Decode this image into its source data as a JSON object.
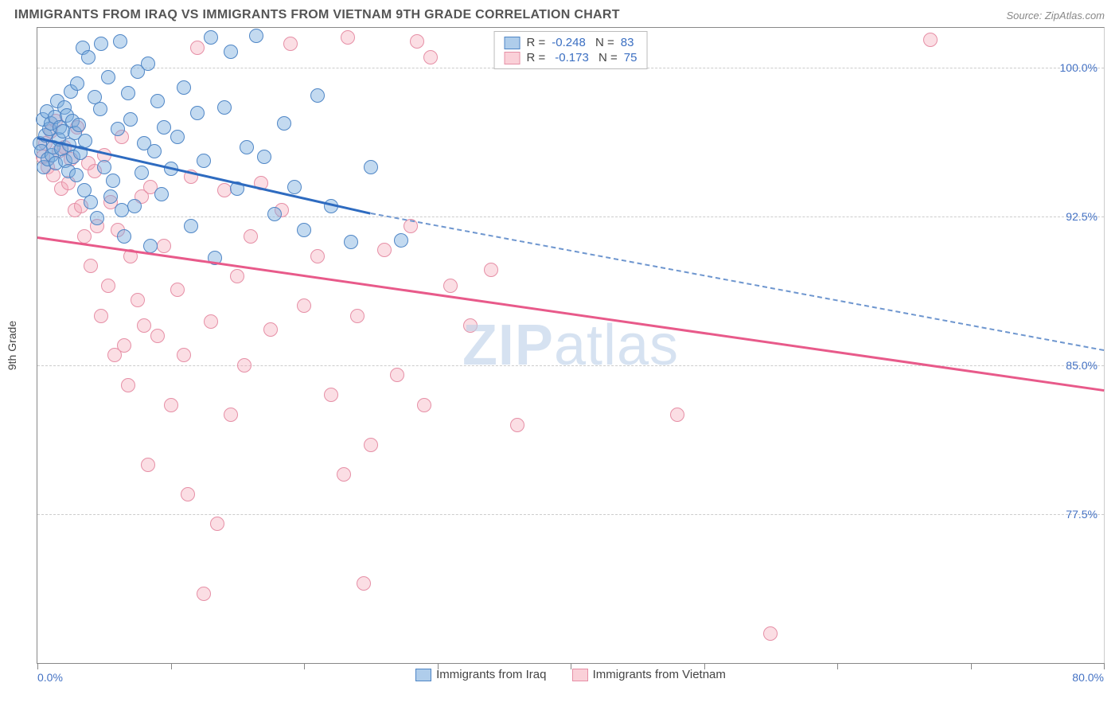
{
  "header": {
    "title": "IMMIGRANTS FROM IRAQ VS IMMIGRANTS FROM VIETNAM 9TH GRADE CORRELATION CHART",
    "source": "Source: ZipAtlas.com"
  },
  "chart": {
    "type": "scatter",
    "ylabel": "9th Grade",
    "watermark": "ZIPatlas",
    "background_color": "#ffffff",
    "grid_color": "#cccccc",
    "axis_color": "#888888",
    "xlim": [
      0,
      80
    ],
    "ylim": [
      70,
      102
    ],
    "xticks": [
      0,
      10,
      20,
      30,
      40,
      50,
      60,
      70,
      80
    ],
    "xtick_labels": {
      "0": "0.0%",
      "80": "80.0%"
    },
    "yticks": [
      77.5,
      85.0,
      92.5,
      100.0
    ],
    "ytick_labels": [
      "77.5%",
      "85.0%",
      "92.5%",
      "100.0%"
    ],
    "marker_radius": 9,
    "series_blue": {
      "label": "Immigrants from Iraq",
      "color_fill": "rgba(122,172,222,0.45)",
      "color_stroke": "#4f86c6",
      "R": "-0.248",
      "N": "83",
      "trend": {
        "x1": 0,
        "y1": 96.5,
        "x2_solid": 25,
        "y2_solid": 92.7,
        "x2": 80,
        "y2": 85.8
      },
      "points": [
        [
          0.2,
          96.2
        ],
        [
          0.3,
          95.8
        ],
        [
          0.4,
          97.4
        ],
        [
          0.5,
          95.0
        ],
        [
          0.6,
          96.6
        ],
        [
          0.7,
          97.8
        ],
        [
          0.8,
          95.4
        ],
        [
          0.9,
          96.9
        ],
        [
          1.0,
          97.2
        ],
        [
          1.1,
          95.6
        ],
        [
          1.2,
          96.0
        ],
        [
          1.3,
          97.5
        ],
        [
          1.4,
          95.2
        ],
        [
          1.5,
          98.3
        ],
        [
          1.6,
          96.4
        ],
        [
          1.7,
          97.0
        ],
        [
          1.8,
          95.9
        ],
        [
          1.9,
          96.8
        ],
        [
          2.0,
          98.0
        ],
        [
          2.1,
          95.3
        ],
        [
          2.2,
          97.6
        ],
        [
          2.3,
          94.8
        ],
        [
          2.4,
          96.1
        ],
        [
          2.5,
          98.8
        ],
        [
          2.6,
          97.3
        ],
        [
          2.7,
          95.5
        ],
        [
          2.8,
          96.7
        ],
        [
          2.9,
          94.6
        ],
        [
          3.0,
          99.2
        ],
        [
          3.1,
          97.1
        ],
        [
          3.2,
          95.7
        ],
        [
          3.4,
          101.0
        ],
        [
          3.5,
          93.8
        ],
        [
          3.6,
          96.3
        ],
        [
          3.8,
          100.5
        ],
        [
          4.0,
          93.2
        ],
        [
          4.3,
          98.5
        ],
        [
          4.5,
          92.4
        ],
        [
          4.7,
          97.9
        ],
        [
          4.8,
          101.2
        ],
        [
          5.0,
          95.0
        ],
        [
          5.3,
          99.5
        ],
        [
          5.5,
          93.5
        ],
        [
          5.7,
          94.3
        ],
        [
          6.0,
          96.9
        ],
        [
          6.2,
          101.3
        ],
        [
          6.3,
          92.8
        ],
        [
          6.5,
          91.5
        ],
        [
          6.8,
          98.7
        ],
        [
          7.0,
          97.4
        ],
        [
          7.3,
          93.0
        ],
        [
          7.5,
          99.8
        ],
        [
          7.8,
          94.7
        ],
        [
          8.0,
          96.2
        ],
        [
          8.3,
          100.2
        ],
        [
          8.5,
          91.0
        ],
        [
          8.8,
          95.8
        ],
        [
          9.0,
          98.3
        ],
        [
          9.3,
          93.6
        ],
        [
          9.5,
          97.0
        ],
        [
          10.0,
          94.9
        ],
        [
          10.5,
          96.5
        ],
        [
          11.0,
          99.0
        ],
        [
          11.5,
          92.0
        ],
        [
          12.0,
          97.7
        ],
        [
          12.5,
          95.3
        ],
        [
          13.0,
          101.5
        ],
        [
          13.3,
          90.4
        ],
        [
          14.0,
          98.0
        ],
        [
          14.5,
          100.8
        ],
        [
          15.0,
          93.9
        ],
        [
          15.7,
          96.0
        ],
        [
          16.4,
          101.6
        ],
        [
          17.0,
          95.5
        ],
        [
          17.8,
          92.6
        ],
        [
          18.5,
          97.2
        ],
        [
          19.3,
          94.0
        ],
        [
          20.0,
          91.8
        ],
        [
          21.0,
          98.6
        ],
        [
          22.0,
          93.0
        ],
        [
          23.5,
          91.2
        ],
        [
          25.0,
          95.0
        ],
        [
          27.3,
          91.3
        ]
      ]
    },
    "series_pink": {
      "label": "Immigrants from Vietnam",
      "color_fill": "rgba(245,169,184,0.38)",
      "color_stroke": "#e68fa6",
      "R": "-0.173",
      "N": "75",
      "trend": {
        "x1": 0,
        "y1": 91.5,
        "x2": 80,
        "y2": 83.8
      },
      "points": [
        [
          0.4,
          95.5
        ],
        [
          0.6,
          96.2
        ],
        [
          0.8,
          95.0
        ],
        [
          1.0,
          96.8
        ],
        [
          1.2,
          94.6
        ],
        [
          1.4,
          97.3
        ],
        [
          1.6,
          95.8
        ],
        [
          1.8,
          93.9
        ],
        [
          2.0,
          96.0
        ],
        [
          2.3,
          94.2
        ],
        [
          2.5,
          95.4
        ],
        [
          2.8,
          92.8
        ],
        [
          3.0,
          97.0
        ],
        [
          3.3,
          93.0
        ],
        [
          3.5,
          91.5
        ],
        [
          3.8,
          95.2
        ],
        [
          4.0,
          90.0
        ],
        [
          4.3,
          94.8
        ],
        [
          4.5,
          92.0
        ],
        [
          4.8,
          87.5
        ],
        [
          5.0,
          95.6
        ],
        [
          5.3,
          89.0
        ],
        [
          5.5,
          93.2
        ],
        [
          5.8,
          85.5
        ],
        [
          6.0,
          91.8
        ],
        [
          6.3,
          96.5
        ],
        [
          6.5,
          86.0
        ],
        [
          6.8,
          84.0
        ],
        [
          7.0,
          90.5
        ],
        [
          7.5,
          88.3
        ],
        [
          7.8,
          93.5
        ],
        [
          8.0,
          87.0
        ],
        [
          8.3,
          80.0
        ],
        [
          8.5,
          94.0
        ],
        [
          9.0,
          86.5
        ],
        [
          9.5,
          91.0
        ],
        [
          10.0,
          83.0
        ],
        [
          10.5,
          88.8
        ],
        [
          11.0,
          85.5
        ],
        [
          11.3,
          78.5
        ],
        [
          11.5,
          94.5
        ],
        [
          12.0,
          101.0
        ],
        [
          12.5,
          73.5
        ],
        [
          13.0,
          87.2
        ],
        [
          13.5,
          77.0
        ],
        [
          14.0,
          93.8
        ],
        [
          14.5,
          82.5
        ],
        [
          15.0,
          89.5
        ],
        [
          15.5,
          85.0
        ],
        [
          16.0,
          91.5
        ],
        [
          16.8,
          94.2
        ],
        [
          17.5,
          86.8
        ],
        [
          18.3,
          92.8
        ],
        [
          19.0,
          101.2
        ],
        [
          20.0,
          88.0
        ],
        [
          21.0,
          90.5
        ],
        [
          22.0,
          83.5
        ],
        [
          23.0,
          79.5
        ],
        [
          23.3,
          101.5
        ],
        [
          24.0,
          87.5
        ],
        [
          24.5,
          74.0
        ],
        [
          25.0,
          81.0
        ],
        [
          26.0,
          90.8
        ],
        [
          27.0,
          84.5
        ],
        [
          28.0,
          92.0
        ],
        [
          28.5,
          101.3
        ],
        [
          29.0,
          83.0
        ],
        [
          29.5,
          100.5
        ],
        [
          31.0,
          89.0
        ],
        [
          32.5,
          87.0
        ],
        [
          34.0,
          89.8
        ],
        [
          36.0,
          82.0
        ],
        [
          48.0,
          82.5
        ],
        [
          55.0,
          71.5
        ],
        [
          67.0,
          101.4
        ]
      ]
    },
    "bottom_legend": [
      {
        "swatch": "blue",
        "label": "Immigrants from Iraq"
      },
      {
        "swatch": "pink",
        "label": "Immigrants from Vietnam"
      }
    ]
  }
}
